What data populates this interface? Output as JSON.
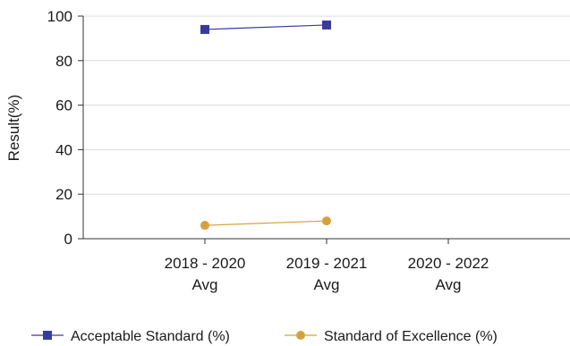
{
  "chart_data": {
    "type": "line",
    "title": "",
    "xlabel": "",
    "ylabel": "Result(%)",
    "ylim": [
      0,
      100
    ],
    "yticks": [
      0,
      20,
      40,
      60,
      80,
      100
    ],
    "grid": true,
    "legend_position": "bottom",
    "categories": [
      [
        "2018 - 2020",
        "Avg"
      ],
      [
        "2019 - 2021",
        "Avg"
      ],
      [
        "2020 - 2022",
        "Avg"
      ]
    ],
    "series": [
      {
        "name": "Acceptable Standard (%)",
        "values": [
          94,
          96,
          null
        ],
        "color": "#3a3a9e",
        "marker": "square"
      },
      {
        "name": "Standard of Excellence (%)",
        "values": [
          6,
          8,
          null
        ],
        "color": "#d4a23c",
        "marker": "circle"
      }
    ]
  }
}
